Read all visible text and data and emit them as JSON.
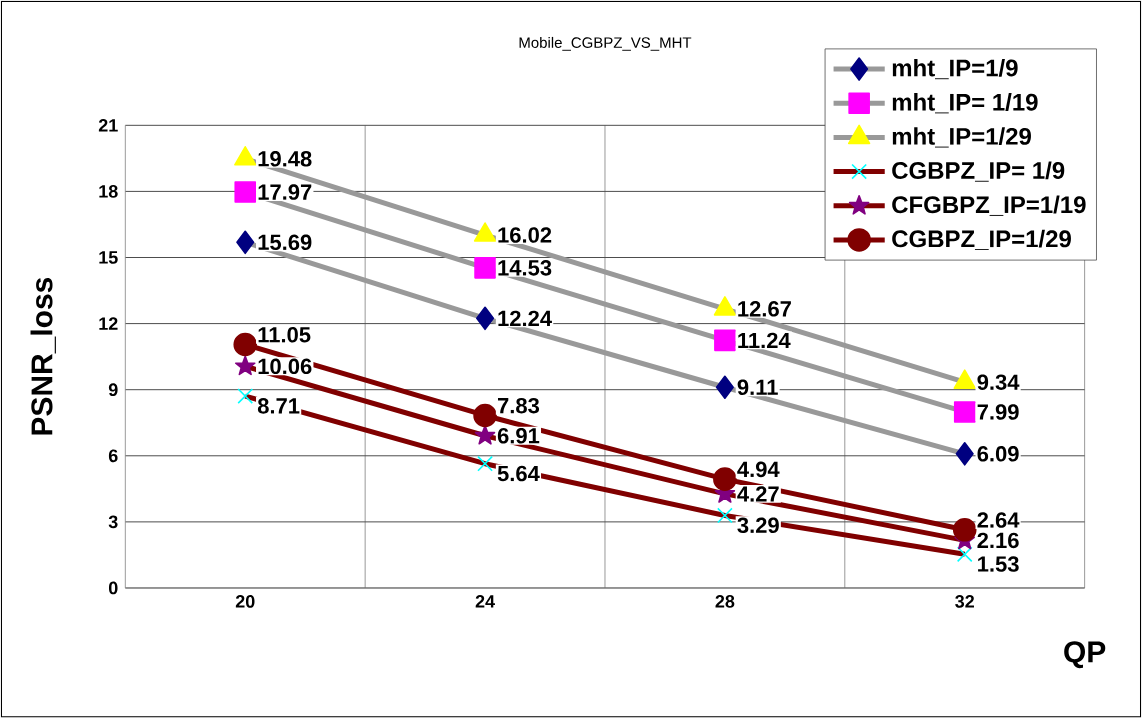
{
  "chart_data": {
    "type": "line",
    "title": "Mobile_CGBPZ_VS_MHT",
    "xlabel": "QP",
    "ylabel": "PSNR_loss",
    "categories": [
      "20",
      "24",
      "28",
      "32"
    ],
    "ylim": [
      0,
      21
    ],
    "yticks": [
      0,
      3,
      6,
      9,
      12,
      15,
      18,
      21
    ],
    "grid": true,
    "legend": "top right",
    "data_labels": true,
    "series": [
      {
        "name": "mht_IP=1/9",
        "color": "#000080",
        "marker": "diamond",
        "values": [
          15.69,
          12.24,
          9.11,
          6.09
        ]
      },
      {
        "name": "mht_IP=  1/19",
        "color": "#ff00ff",
        "marker": "square",
        "values": [
          17.97,
          14.53,
          11.24,
          7.99
        ]
      },
      {
        "name": "mht_IP=1/29",
        "color": "#ffff00",
        "marker": "triangle",
        "values": [
          19.48,
          16.02,
          12.67,
          9.34
        ]
      },
      {
        "name": "CGBPZ_IP=  1/9",
        "color": "#00ffff",
        "marker": "cross",
        "values": [
          8.71,
          5.64,
          3.29,
          1.53
        ]
      },
      {
        "name": "CFGBPZ_IP=1/19",
        "color": "#800080",
        "marker": "star",
        "values": [
          10.06,
          6.91,
          4.27,
          2.16
        ]
      },
      {
        "name": "CGBPZ_IP=1/29",
        "color": "#800000",
        "marker": "circle",
        "values": [
          11.05,
          7.83,
          4.94,
          2.64
        ]
      }
    ]
  }
}
